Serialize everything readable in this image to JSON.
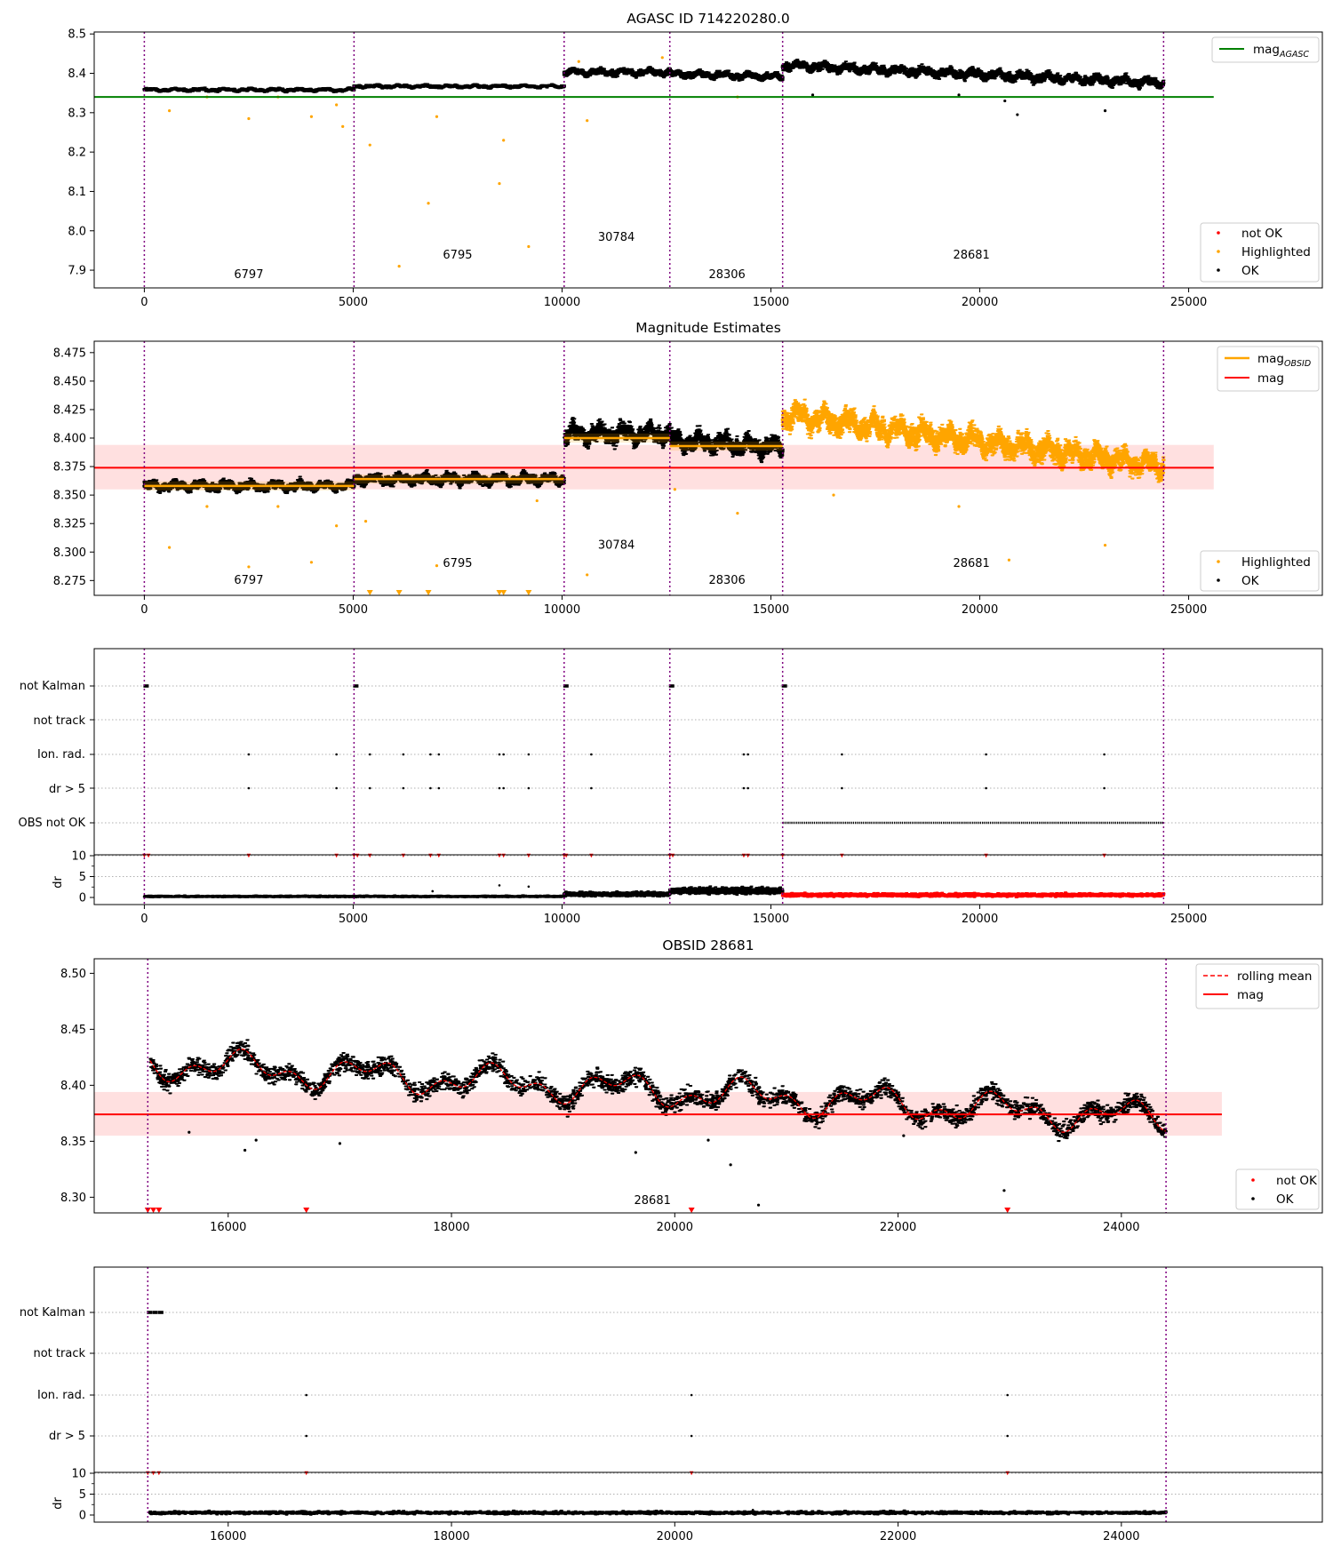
{
  "chart_data": [
    {
      "id": "agasc",
      "type": "scatter",
      "title": "AGASC ID 714220280.0",
      "ylabel": "",
      "xlim": [
        -1200,
        28200
      ],
      "ylim": [
        7.855,
        8.505
      ],
      "xticks": [
        0,
        5000,
        10000,
        15000,
        20000,
        25000
      ],
      "yticks": [
        7.9,
        8.0,
        8.1,
        8.2,
        8.3,
        8.4,
        8.5
      ],
      "vlines": [
        0,
        5020,
        10050,
        12580,
        15280,
        24400
      ],
      "obsid_labels": [
        {
          "text": "6797",
          "x": 2500,
          "y": 7.88
        },
        {
          "text": "6795",
          "x": 7500,
          "y": 7.93
        },
        {
          "text": "30784",
          "x": 11300,
          "y": 7.975
        },
        {
          "text": "28306",
          "x": 13950,
          "y": 7.88
        },
        {
          "text": "28681",
          "x": 19800,
          "y": 7.93
        }
      ],
      "hline": {
        "name": "mag$_{AGASC}$",
        "label_main": "mag",
        "label_sub": "AGASC",
        "value": 8.34,
        "x_range": [
          -1200,
          25600
        ],
        "color": "#008000"
      },
      "segments": [
        {
          "x": [
            0,
            5020
          ],
          "mean": 8.358,
          "amp": 0.006,
          "drift": 0.0,
          "class": "ok"
        },
        {
          "x": [
            5020,
            10050
          ],
          "mean": 8.367,
          "amp": 0.006,
          "drift": 0.0,
          "class": "ok"
        },
        {
          "x": [
            10050,
            12580
          ],
          "mean": 8.403,
          "amp": 0.013,
          "drift": 0.0,
          "class": "ok"
        },
        {
          "x": [
            12580,
            15280
          ],
          "mean": 8.395,
          "amp": 0.013,
          "drift": -0.008,
          "class": "ok"
        },
        {
          "x": [
            15280,
            24400
          ],
          "mean": 8.398,
          "amp": 0.017,
          "drift": -0.045,
          "class": "ok"
        }
      ],
      "highlighted_outliers": [
        [
          600,
          8.305
        ],
        [
          1500,
          8.34
        ],
        [
          2500,
          8.285
        ],
        [
          3200,
          8.34
        ],
        [
          4000,
          8.29
        ],
        [
          4600,
          8.32
        ],
        [
          4750,
          8.265
        ],
        [
          5400,
          8.218
        ],
        [
          6100,
          7.91
        ],
        [
          6800,
          8.07
        ],
        [
          7000,
          8.29
        ],
        [
          8500,
          8.12
        ],
        [
          8600,
          8.23
        ],
        [
          9200,
          7.96
        ],
        [
          10400,
          8.43
        ],
        [
          10600,
          8.28
        ],
        [
          12400,
          8.44
        ],
        [
          14200,
          8.34
        ]
      ],
      "ok_outliers": [
        [
          20600,
          8.33
        ],
        [
          20900,
          8.295
        ],
        [
          23000,
          8.305
        ],
        [
          16000,
          8.345
        ],
        [
          19500,
          8.345
        ]
      ],
      "legends": [
        {
          "pos": "upper-right",
          "entries": [
            {
              "label": "mag$_{AGASC}$",
              "main": "mag",
              "sub": "AGASC",
              "kind": "line",
              "color": "#008000"
            }
          ]
        },
        {
          "pos": "lower-right",
          "entries": [
            {
              "label": "not OK",
              "kind": "dot",
              "color": "#ff0000"
            },
            {
              "label": "Highlighted",
              "kind": "dot",
              "color": "#ffa500"
            },
            {
              "label": "OK",
              "kind": "dot",
              "color": "#000000"
            }
          ]
        }
      ]
    },
    {
      "id": "estimates",
      "type": "scatter",
      "title": "Magnitude Estimates",
      "ylabel": "",
      "xlim": [
        -1200,
        28200
      ],
      "ylim": [
        8.262,
        8.485
      ],
      "xticks": [
        0,
        5000,
        10000,
        15000,
        20000,
        25000
      ],
      "yticks": [
        8.275,
        8.3,
        8.325,
        8.35,
        8.375,
        8.4,
        8.425,
        8.45,
        8.475
      ],
      "vlines": [
        0,
        5020,
        10050,
        12580,
        15280,
        24400
      ],
      "obsid_labels": [
        {
          "text": "6797",
          "x": 2500,
          "y": 8.272
        },
        {
          "text": "6795",
          "x": 7500,
          "y": 8.287
        },
        {
          "text": "30784",
          "x": 11300,
          "y": 8.303
        },
        {
          "text": "28306",
          "x": 13950,
          "y": 8.272
        },
        {
          "text": "28681",
          "x": 19800,
          "y": 8.287
        }
      ],
      "mag_line": {
        "name": "mag",
        "value": 8.374,
        "band": [
          8.355,
          8.394
        ],
        "x_range": [
          -1200,
          25600
        ],
        "color": "#ff0000"
      },
      "obsid_mags": [
        {
          "x": [
            0,
            5020
          ],
          "value": 8.358
        },
        {
          "x": [
            5020,
            10050
          ],
          "value": 8.364
        },
        {
          "x": [
            10050,
            12580
          ],
          "value": 8.4
        },
        {
          "x": [
            12580,
            15280
          ],
          "value": 8.393
        }
      ],
      "segments": [
        {
          "x": [
            0,
            5020
          ],
          "mean": 8.358,
          "amp": 0.006,
          "drift": 0.0,
          "class": "ok"
        },
        {
          "x": [
            5020,
            10050
          ],
          "mean": 8.364,
          "amp": 0.007,
          "drift": 0.0,
          "class": "ok"
        },
        {
          "x": [
            10050,
            12580
          ],
          "mean": 8.404,
          "amp": 0.012,
          "drift": 0.0,
          "class": "ok"
        },
        {
          "x": [
            12580,
            15280
          ],
          "mean": 8.395,
          "amp": 0.012,
          "drift": -0.006,
          "class": "ok"
        },
        {
          "x": [
            15280,
            24400
          ],
          "mean": 8.398,
          "amp": 0.016,
          "drift": -0.045,
          "class": "highlighted"
        }
      ],
      "highlighted_outliers": [
        [
          600,
          8.304
        ],
        [
          1500,
          8.34
        ],
        [
          2500,
          8.287
        ],
        [
          3200,
          8.34
        ],
        [
          4000,
          8.291
        ],
        [
          4600,
          8.323
        ],
        [
          5300,
          8.327
        ],
        [
          7000,
          8.288
        ],
        [
          9400,
          8.345
        ],
        [
          10600,
          8.28
        ],
        [
          12700,
          8.355
        ],
        [
          14200,
          8.334
        ],
        [
          16500,
          8.35
        ],
        [
          19500,
          8.34
        ],
        [
          20700,
          8.293
        ],
        [
          23000,
          8.306
        ]
      ],
      "clipped_low": [
        5400,
        6100,
        6800,
        8500,
        8600,
        9200
      ],
      "legends": [
        {
          "pos": "upper-right",
          "entries": [
            {
              "label": "mag$_{OBSID}$",
              "main": "mag",
              "sub": "OBSID",
              "kind": "line",
              "color": "#ffa500"
            },
            {
              "label": "mag",
              "kind": "line",
              "color": "#ff0000"
            }
          ]
        },
        {
          "pos": "lower-right",
          "entries": [
            {
              "label": "Highlighted",
              "kind": "dot",
              "color": "#ffa500"
            },
            {
              "label": "OK",
              "kind": "dot",
              "color": "#000000"
            }
          ]
        }
      ]
    },
    {
      "id": "flags-all",
      "type": "scatter",
      "title": "",
      "xlim": [
        -1200,
        28200
      ],
      "xticks": [
        0,
        5000,
        10000,
        15000,
        20000,
        25000
      ],
      "vlines": [
        0,
        5020,
        10050,
        12580,
        15280,
        24400
      ],
      "flag_rows": [
        "not Kalman",
        "not track",
        "Ion. rad.",
        "dr > 5",
        "OBS not OK"
      ],
      "not_kalman": [
        0,
        5020,
        10050,
        12580,
        15280
      ],
      "ion_rad": [
        2500,
        4600,
        5400,
        6200,
        6850,
        7050,
        8500,
        8600,
        9200,
        10700,
        14350,
        14450,
        16700,
        20150,
        22980
      ],
      "dr_gt5": [
        2500,
        4600,
        5400,
        6200,
        6850,
        7050,
        8500,
        8600,
        9200,
        10700,
        14350,
        14450,
        16700,
        20150,
        22980
      ],
      "obs_not_ok": [
        15280,
        24400
      ],
      "dr": {
        "ylabel": "dr",
        "yticks": [
          0,
          5,
          10
        ],
        "segments": [
          {
            "x": [
              0,
              10050
            ],
            "mean": 0.25,
            "amp": 0.25,
            "color": "#000000"
          },
          {
            "x": [
              10050,
              12580
            ],
            "mean": 0.8,
            "amp": 0.6,
            "color": "#000000"
          },
          {
            "x": [
              12580,
              15280
            ],
            "mean": 1.6,
            "amp": 0.9,
            "color": "#000000"
          },
          {
            "x": [
              15280,
              24400
            ],
            "mean": 0.6,
            "amp": 0.5,
            "color": "#ff0000"
          }
        ],
        "spikes": [
          [
            8500,
            2.9
          ],
          [
            9200,
            2.6
          ],
          [
            6900,
            1.5
          ]
        ],
        "capped": [
          0,
          100,
          5020,
          5100,
          2500,
          4600,
          5400,
          6200,
          6850,
          7050,
          8500,
          8600,
          9200,
          10050,
          10100,
          10700,
          12580,
          12650,
          14350,
          14450,
          15280,
          16700,
          20150,
          22980
        ]
      }
    },
    {
      "id": "obsid",
      "type": "line",
      "title": "OBSID 28681",
      "xlim": [
        14800,
        25800
      ],
      "ylim": [
        8.286,
        8.513
      ],
      "xticks": [
        16000,
        18000,
        20000,
        22000,
        24000
      ],
      "yticks": [
        8.3,
        8.35,
        8.4,
        8.45,
        8.5
      ],
      "vlines": [
        15280,
        24400
      ],
      "obsid_labels": [
        {
          "text": "28681",
          "x": 19800,
          "y": 8.294
        }
      ],
      "mag_line": {
        "name": "mag",
        "value": 8.374,
        "band": [
          8.355,
          8.394
        ],
        "x_range": [
          14800,
          24900
        ],
        "color": "#ff0000"
      },
      "segment": {
        "x": [
          15280,
          24400
        ],
        "start": 8.42,
        "end": 8.37,
        "amp": 0.012
      },
      "ok_outliers": [
        [
          15650,
          8.358
        ],
        [
          16150,
          8.342
        ],
        [
          16250,
          8.351
        ],
        [
          17000,
          8.348
        ],
        [
          19650,
          8.34
        ],
        [
          20300,
          8.351
        ],
        [
          20500,
          8.329
        ],
        [
          20750,
          8.293
        ],
        [
          22050,
          8.355
        ],
        [
          22950,
          8.306
        ]
      ],
      "not_ok_markers": [
        15280,
        15330,
        15380,
        16700,
        20150,
        22980
      ],
      "legends": [
        {
          "pos": "upper-right",
          "entries": [
            {
              "label": "rolling mean",
              "kind": "dashed",
              "color": "#ff0000"
            },
            {
              "label": "mag",
              "kind": "line",
              "color": "#ff0000"
            }
          ]
        },
        {
          "pos": "lower-right",
          "entries": [
            {
              "label": "not OK",
              "kind": "dot",
              "color": "#ff0000"
            },
            {
              "label": "OK",
              "kind": "dot",
              "color": "#000000"
            }
          ]
        }
      ]
    },
    {
      "id": "flags-obsid",
      "type": "scatter",
      "title": "",
      "xlim": [
        14800,
        25800
      ],
      "xticks": [
        16000,
        18000,
        20000,
        22000,
        24000
      ],
      "vlines": [
        15280,
        24400
      ],
      "flag_rows": [
        "not Kalman",
        "not track",
        "Ion. rad.",
        "dr > 5"
      ],
      "not_kalman": [
        15280,
        15330,
        15380
      ],
      "ion_rad": [
        16700,
        20150,
        22980
      ],
      "dr_gt5": [
        16700,
        20150,
        22980
      ],
      "dr": {
        "ylabel": "dr",
        "yticks": [
          0,
          5,
          10
        ],
        "segments": [
          {
            "x": [
              15300,
              24400
            ],
            "mean": 0.55,
            "amp": 0.45,
            "color": "#000000"
          }
        ],
        "spikes": [
          [
            20700,
            1.2
          ]
        ],
        "capped": [
          15280,
          15330,
          15380,
          16700,
          20150,
          22980
        ]
      }
    }
  ]
}
